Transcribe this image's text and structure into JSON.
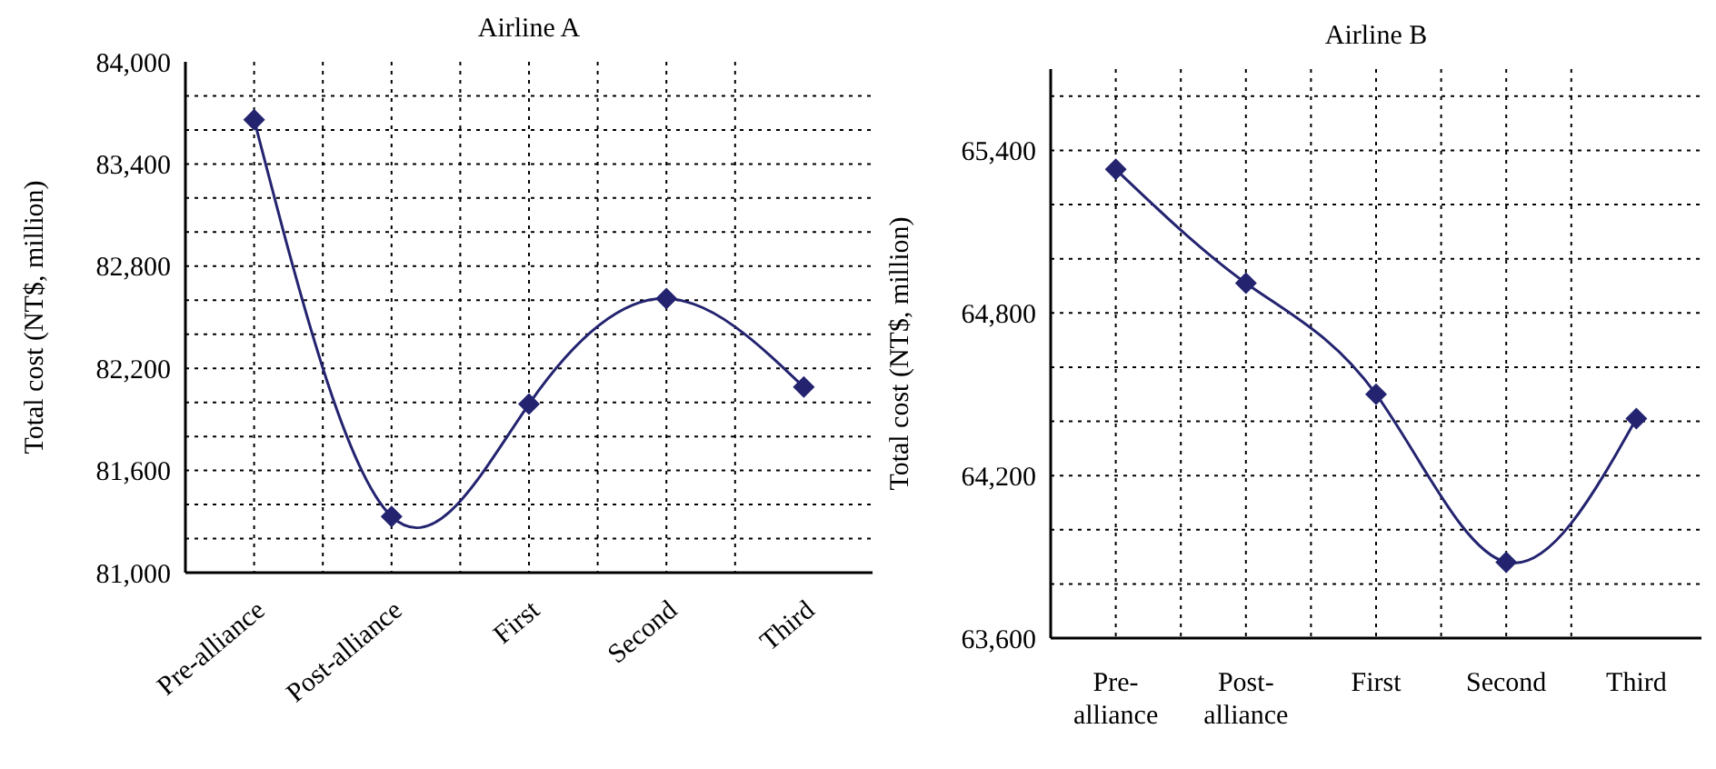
{
  "chart_data": [
    {
      "type": "line",
      "title": "Airline A",
      "ylabel": "Total cost (NT$, million)",
      "categories": [
        "Pre-alliance",
        "Post-alliance",
        "First",
        "Second",
        "Third"
      ],
      "series": [
        {
          "color": "#232370",
          "values": [
            83660,
            81330,
            81990,
            82610,
            82090
          ]
        }
      ],
      "ylim": [
        81000,
        84000
      ],
      "yticks": [
        {
          "value": 81000,
          "label": "81,000"
        },
        {
          "value": 81600,
          "label": "81,600"
        },
        {
          "value": 82200,
          "label": "82,200"
        },
        {
          "value": 82800,
          "label": "82,800"
        },
        {
          "value": 83400,
          "label": "83,400"
        },
        {
          "value": 84000,
          "label": "84,000"
        }
      ],
      "grid": true,
      "legend": false,
      "marker": "diamond",
      "line_style": "solid"
    },
    {
      "type": "line",
      "title": "Airline B",
      "ylabel": "Total cost (NT$, million)",
      "categories": [
        "Pre-alliance",
        "Post-alliance",
        "First",
        "Second",
        "Third"
      ],
      "series": [
        {
          "color": "#232370",
          "values": [
            65330,
            64910,
            64500,
            63880,
            64410
          ]
        }
      ],
      "ylim": [
        63600,
        65700
      ],
      "yticks": [
        {
          "value": 63600,
          "label": "63,600"
        },
        {
          "value": 64200,
          "label": "64,200"
        },
        {
          "value": 64800,
          "label": "64,800"
        },
        {
          "value": 65400,
          "label": "65,400"
        }
      ],
      "grid": true,
      "legend": false,
      "marker": "diamond",
      "line_style": "solid"
    }
  ]
}
